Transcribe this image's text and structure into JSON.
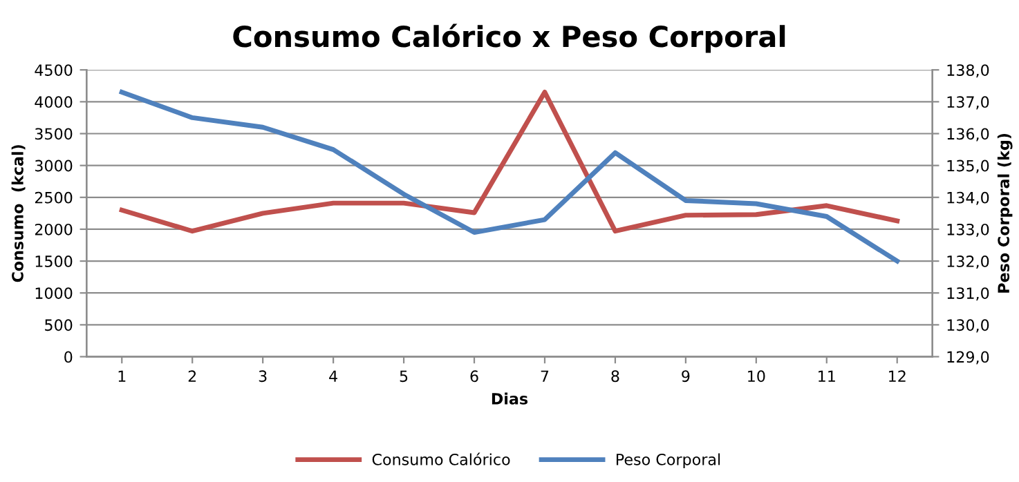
{
  "chart_data": {
    "type": "line",
    "title": "Consumo Calórico x Peso Corporal",
    "xlabel": "Dias",
    "ylabel": "Consumo  (kcal)",
    "y2label": "Peso Corporal (kg)",
    "categories": [
      "1",
      "2",
      "3",
      "4",
      "5",
      "6",
      "7",
      "8",
      "9",
      "10",
      "11",
      "12"
    ],
    "series": [
      {
        "name": "Consumo Calórico",
        "color": "#c0504d",
        "values": [
          2300,
          1970,
          2250,
          2410,
          2410,
          2260,
          4150,
          1970,
          2220,
          2230,
          2370,
          2130
        ]
      },
      {
        "name": "Peso Corporal",
        "color": "#4f81bd",
        "axis": "y2",
        "values": [
          137.3,
          136.5,
          136.2,
          135.5,
          134.1,
          132.9,
          133.3,
          135.4,
          133.9,
          133.8,
          133.4,
          132.0
        ]
      }
    ],
    "ylim": [
      0,
      4500
    ],
    "yticks": [
      0,
      500,
      1000,
      1500,
      2000,
      2500,
      3000,
      3500,
      4000,
      4500
    ],
    "y2lim": [
      129,
      138
    ],
    "y2ticks": [
      {
        "value": 129,
        "label": "129,0"
      },
      {
        "value": 130,
        "label": "130,0"
      },
      {
        "value": 131,
        "label": "131,0"
      },
      {
        "value": 132,
        "label": "132,0"
      },
      {
        "value": 133,
        "label": "133,0"
      },
      {
        "value": 134,
        "label": "134,0"
      },
      {
        "value": 135,
        "label": "135,0"
      },
      {
        "value": 136,
        "label": "136,0"
      },
      {
        "value": 137,
        "label": "137,0"
      },
      {
        "value": 138,
        "label": "138,0"
      }
    ],
    "grid": "y",
    "legend": "bottom",
    "marker": "none",
    "line_style": "solid"
  }
}
